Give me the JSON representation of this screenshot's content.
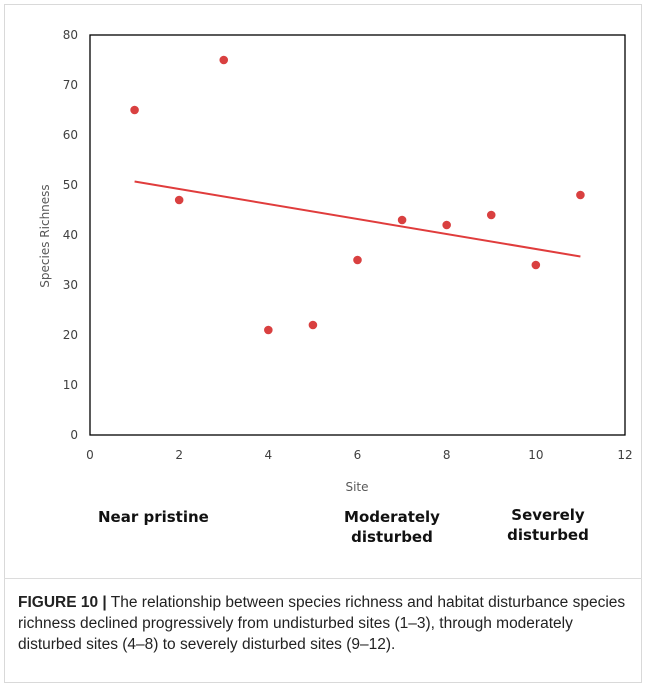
{
  "chart_data": {
    "type": "scatter",
    "xlabel": "Site",
    "ylabel": "Species Richness",
    "xlim": [
      0,
      12
    ],
    "ylim": [
      0,
      80
    ],
    "xticks": [
      0,
      2,
      4,
      6,
      8,
      10,
      12
    ],
    "yticks": [
      0,
      10,
      20,
      30,
      40,
      50,
      60,
      70,
      80
    ],
    "x": [
      1,
      2,
      3,
      4,
      5,
      6,
      7,
      8,
      9,
      10,
      11
    ],
    "y": [
      65,
      47,
      75,
      21,
      22,
      35,
      43,
      42,
      44,
      34,
      48
    ],
    "trendline": {
      "x": [
        1,
        11
      ],
      "y": [
        50.7,
        35.7
      ]
    },
    "point_color": "#d94040",
    "trend_color": "#e03c3c",
    "grid": false,
    "regions": [
      {
        "label": "Near pristine",
        "lines": [
          "Near pristine"
        ]
      },
      {
        "label": "Moderately disturbed",
        "lines": [
          "Moderately",
          "disturbed"
        ]
      },
      {
        "label": "Severely disturbed",
        "lines": [
          "Severely",
          "disturbed"
        ]
      }
    ]
  },
  "caption": {
    "label": "FIGURE 10 |",
    "text": " The relationship between species richness and habitat disturbance species richness declined progressively from undisturbed sites (1–3), through moderately disturbed sites (4–8) to severely disturbed sites (9–12)."
  }
}
